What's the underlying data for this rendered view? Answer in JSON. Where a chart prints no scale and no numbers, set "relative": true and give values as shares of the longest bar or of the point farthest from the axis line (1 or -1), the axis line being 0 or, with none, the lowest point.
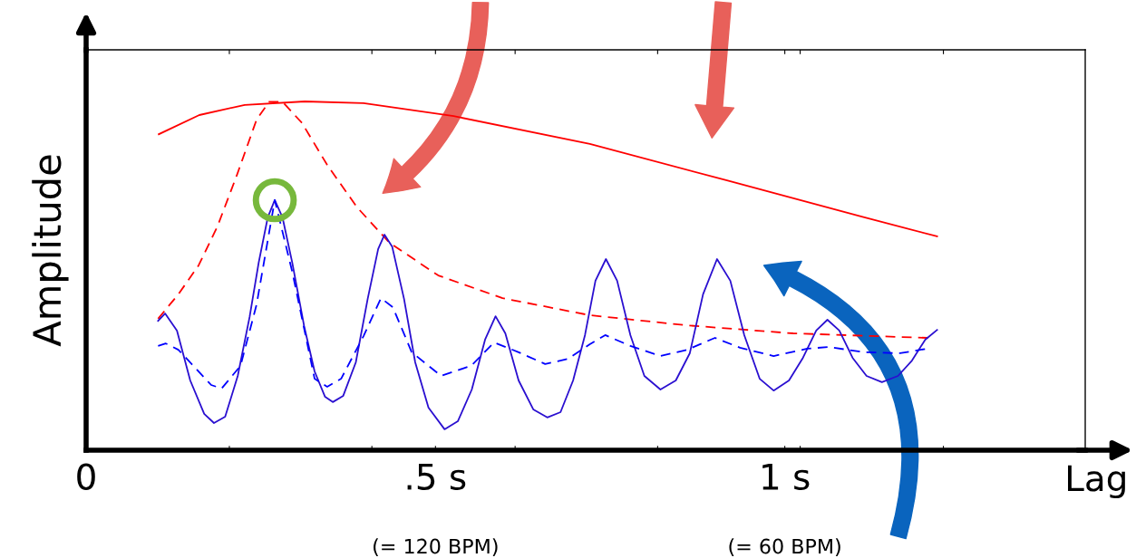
{
  "chart_data": {
    "type": "line",
    "relative": true,
    "xlabel": "Lag",
    "ylabel": "Amplitude",
    "xlim": [
      0,
      1.43
    ],
    "xticks": [
      0,
      {
        "value": 0.205,
        "label": null
      },
      {
        "value": 0.409,
        "label": null
      },
      {
        "value": 0.5,
        "label": ".5 s"
      },
      {
        "value": 0.614,
        "label": null
      },
      {
        "value": 0.818,
        "label": null
      },
      {
        "value": 1,
        "label": "1 s"
      },
      {
        "value": 1.022,
        "label": null
      },
      {
        "value": 1.227,
        "label": null
      }
    ],
    "annotations": [
      "(= 120 BPM)",
      "(= 60 BPM)"
    ],
    "series": [
      {
        "color": "#ff0000",
        "line_style": "solid",
        "x": [
          0.104,
          0.162,
          0.227,
          0.313,
          0.397,
          0.526,
          0.721,
          0.916,
          1.11,
          1.218
        ],
        "values": [
          0.906,
          0.961,
          0.99,
          1.0,
          0.995,
          0.958,
          0.878,
          0.774,
          0.67,
          0.613
        ]
      },
      {
        "color": "#ff0000",
        "line_style": "dashed",
        "x": [
          0.103,
          0.132,
          0.161,
          0.188,
          0.216,
          0.244,
          0.262,
          0.281,
          0.309,
          0.345,
          0.388,
          0.434,
          0.504,
          0.596,
          0.721,
          0.86,
          1.012,
          1.205
        ],
        "values": [
          0.377,
          0.447,
          0.53,
          0.642,
          0.79,
          0.948,
          0.999,
          0.999,
          0.938,
          0.818,
          0.696,
          0.595,
          0.501,
          0.436,
          0.387,
          0.358,
          0.335,
          0.322
        ]
      },
      {
        "color": "#2a0fd0",
        "line_style": "solid",
        "x": [
          0.103,
          0.113,
          0.13,
          0.149,
          0.169,
          0.183,
          0.199,
          0.217,
          0.234,
          0.247,
          0.26,
          0.27,
          0.281,
          0.295,
          0.312,
          0.327,
          0.342,
          0.353,
          0.368,
          0.386,
          0.403,
          0.418,
          0.427,
          0.438,
          0.455,
          0.471,
          0.49,
          0.513,
          0.532,
          0.552,
          0.571,
          0.586,
          0.6,
          0.619,
          0.64,
          0.66,
          0.679,
          0.697,
          0.714,
          0.729,
          0.744,
          0.76,
          0.779,
          0.799,
          0.822,
          0.844,
          0.864,
          0.883,
          0.903,
          0.922,
          0.942,
          0.964,
          0.984,
          1.006,
          1.026,
          1.045,
          1.061,
          1.078,
          1.097,
          1.117,
          1.139,
          1.162,
          1.182,
          1.201,
          1.218
        ],
        "values": [
          0.371,
          0.392,
          0.343,
          0.2,
          0.104,
          0.078,
          0.096,
          0.213,
          0.382,
          0.538,
          0.668,
          0.717,
          0.668,
          0.538,
          0.356,
          0.226,
          0.153,
          0.138,
          0.156,
          0.252,
          0.434,
          0.577,
          0.618,
          0.584,
          0.434,
          0.252,
          0.122,
          0.06,
          0.083,
          0.174,
          0.317,
          0.384,
          0.335,
          0.2,
          0.117,
          0.094,
          0.109,
          0.2,
          0.33,
          0.486,
          0.548,
          0.486,
          0.33,
          0.213,
          0.174,
          0.2,
          0.278,
          0.447,
          0.548,
          0.486,
          0.33,
          0.205,
          0.171,
          0.2,
          0.265,
          0.343,
          0.374,
          0.343,
          0.265,
          0.213,
          0.195,
          0.213,
          0.257,
          0.317,
          0.345
        ]
      },
      {
        "color": "#0000ff",
        "line_style": "dashed",
        "x": [
          0.103,
          0.114,
          0.132,
          0.179,
          0.194,
          0.221,
          0.244,
          0.27,
          0.295,
          0.327,
          0.345,
          0.365,
          0.397,
          0.422,
          0.439,
          0.466,
          0.508,
          0.551,
          0.584,
          0.619,
          0.657,
          0.69,
          0.721,
          0.743,
          0.779,
          0.822,
          0.86,
          0.9,
          0.936,
          0.984,
          1.032,
          1.062,
          1.114,
          1.165,
          1.203
        ],
        "values": [
          0.299,
          0.306,
          0.288,
          0.187,
          0.177,
          0.242,
          0.418,
          0.717,
          0.512,
          0.205,
          0.182,
          0.205,
          0.327,
          0.436,
          0.41,
          0.281,
          0.213,
          0.242,
          0.309,
          0.281,
          0.247,
          0.262,
          0.304,
          0.33,
          0.299,
          0.27,
          0.288,
          0.322,
          0.294,
          0.27,
          0.291,
          0.296,
          0.281,
          0.278,
          0.291
        ]
      },
      {
        "type": "scatter",
        "marker": "circle",
        "color": "#77b83c",
        "x": [
          0.27
        ],
        "values": [
          0.717
        ]
      }
    ]
  }
}
